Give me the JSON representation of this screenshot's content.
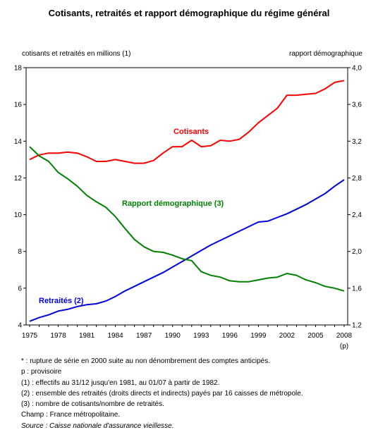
{
  "chart_data": {
    "type": "line",
    "title": "Cotisants, retraités et rapport démographique du régime général",
    "left_axis_label": "cotisants et retraités en millions (1)",
    "right_axis_label": "rapport démographique",
    "left_ylim": [
      4,
      18
    ],
    "left_yticks": [
      "4",
      "6",
      "8",
      "10",
      "12",
      "14",
      "16",
      "18"
    ],
    "right_ylim": [
      1.2,
      4.0
    ],
    "right_yticks": [
      "1,2",
      "1,6",
      "2,0",
      "2,4",
      "2,8",
      "3,2",
      "3,6",
      "4,0"
    ],
    "xlim": [
      1975,
      2008
    ],
    "xticks": [
      "1975",
      "1978",
      "1981",
      "1984",
      "1987",
      "1990",
      "1993",
      "1996",
      "1999",
      "2002",
      "2005",
      "2008"
    ],
    "xtick_note": "(p)",
    "grid": false,
    "series": [
      {
        "name": "Cotisants",
        "axis": "left",
        "color": "#ff0000",
        "x": [
          1975,
          1976,
          1977,
          1978,
          1979,
          1980,
          1981,
          1982,
          1983,
          1984,
          1985,
          1986,
          1987,
          1988,
          1989,
          1990,
          1991,
          1992,
          1993,
          1994,
          1995,
          1996,
          1997,
          1998,
          1999,
          2000,
          2001,
          2002,
          2003,
          2004,
          2005,
          2006,
          2007,
          2008
        ],
        "values": [
          13.0,
          13.25,
          13.35,
          13.35,
          13.4,
          13.35,
          13.15,
          12.9,
          12.9,
          13.0,
          12.9,
          12.8,
          12.8,
          12.95,
          13.35,
          13.7,
          13.7,
          14.05,
          13.7,
          13.75,
          14.05,
          14.0,
          14.1,
          14.5,
          15.0,
          15.4,
          15.8,
          16.5,
          16.5,
          16.55,
          16.6,
          16.85,
          17.2,
          17.3
        ]
      },
      {
        "name": "Retraités (2)",
        "axis": "left",
        "color": "#0000dd",
        "x": [
          1975,
          1976,
          1977,
          1978,
          1979,
          1980,
          1981,
          1982,
          1983,
          1984,
          1985,
          1986,
          1987,
          1988,
          1989,
          1990,
          1991,
          1992,
          1993,
          1994,
          1995,
          1996,
          1997,
          1998,
          1999,
          2000,
          2001,
          2002,
          2003,
          2004,
          2005,
          2006,
          2007,
          2008
        ],
        "values": [
          4.2,
          4.4,
          4.55,
          4.75,
          4.85,
          5.0,
          5.1,
          5.15,
          5.3,
          5.55,
          5.85,
          6.1,
          6.35,
          6.6,
          6.85,
          7.15,
          7.45,
          7.75,
          8.05,
          8.35,
          8.6,
          8.85,
          9.1,
          9.35,
          9.6,
          9.65,
          9.85,
          10.05,
          10.3,
          10.55,
          10.85,
          11.15,
          11.55,
          11.9
        ]
      },
      {
        "name": "Rapport démographique (3)",
        "axis": "right",
        "color": "#008000",
        "x": [
          1975,
          1976,
          1977,
          1978,
          1979,
          1980,
          1981,
          1982,
          1983,
          1984,
          1985,
          1986,
          1987,
          1988,
          1989,
          1990,
          1991,
          1992,
          1993,
          1994,
          1995,
          1996,
          1997,
          1998,
          1999,
          2000,
          2001,
          2002,
          2003,
          2004,
          2005,
          2006,
          2007,
          2008
        ],
        "values": [
          3.14,
          3.04,
          2.98,
          2.86,
          2.79,
          2.71,
          2.61,
          2.54,
          2.48,
          2.38,
          2.25,
          2.13,
          2.05,
          2.0,
          1.99,
          1.96,
          1.92,
          1.9,
          1.78,
          1.74,
          1.72,
          1.68,
          1.67,
          1.67,
          1.69,
          1.71,
          1.72,
          1.76,
          1.74,
          1.69,
          1.66,
          1.62,
          1.6,
          1.57
        ]
      }
    ]
  },
  "notes": [
    "* : rupture de série en 2000 suite au non dénombrement des comptes anticipés.",
    "p : provisoire",
    "(1) : effectifs au 31/12 jusqu'en 1981, au 01/07 à partir de 1982.",
    "(2) : ensemble des retraités (droits directs et indirects) payés par 16 caisses de métropole.",
    "(3) : nombre de cotisants/nombre de retraités.",
    "Champ : France métropolitaine."
  ],
  "source": "Source : Caisse nationale d'assurance vieillesse."
}
